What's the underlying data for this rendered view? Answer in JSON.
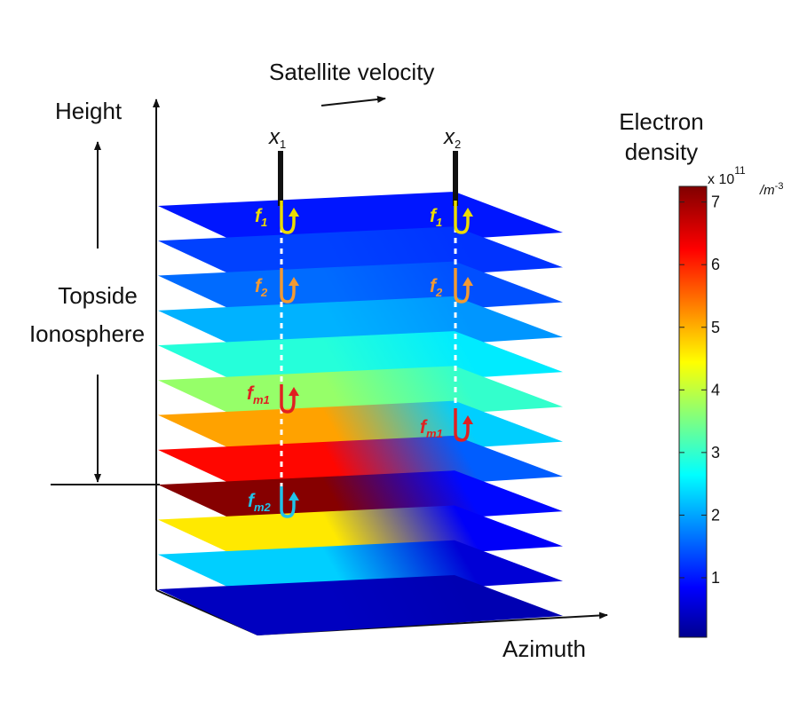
{
  "labels": {
    "satellite_velocity": "Satellite velocity",
    "height": "Height",
    "topside_line1": "Topside",
    "topside_line2": "Ionosphere",
    "azimuth": "Azimuth"
  },
  "colorbar": {
    "title_line1": "Electron",
    "title_line2": "density",
    "scale_base": "x 10",
    "scale_exp": "11",
    "unit_base": "/m",
    "unit_exp": "-3",
    "ticks": [
      "1",
      "2",
      "3",
      "4",
      "5",
      "6",
      "7"
    ],
    "min": 0.05,
    "max": 7.25
  },
  "satellites": [
    {
      "symbol": "x",
      "sub": "1"
    },
    {
      "symbol": "x",
      "sub": "2"
    }
  ],
  "freq_labels": {
    "x1": [
      {
        "sym": "f",
        "sub": "1",
        "color": "#ecdc00"
      },
      {
        "sym": "f",
        "sub": "2",
        "color": "#f39a32"
      },
      {
        "sym": "f",
        "sub": "m1",
        "color": "#e02020"
      },
      {
        "sym": "f",
        "sub": "m2",
        "color": "#21c3e8"
      }
    ],
    "x2": [
      {
        "sym": "f",
        "sub": "1",
        "color": "#ecdc00"
      },
      {
        "sym": "f",
        "sub": "2",
        "color": "#f39a32"
      },
      {
        "sym": "f",
        "sub": "m1",
        "color": "#e02020"
      }
    ]
  },
  "layers": [
    {
      "level": 1,
      "back": 1.0,
      "front": 1.0
    },
    {
      "level": 2,
      "back": 1.2,
      "front": 1.3
    },
    {
      "level": 3,
      "back": 1.4,
      "front": 1.6
    },
    {
      "level": 4,
      "back": 1.9,
      "front": 2.1
    },
    {
      "level": 5,
      "back": 2.5,
      "front": 2.9
    },
    {
      "level": 6,
      "back": 3.0,
      "front": 3.7
    },
    {
      "level": 7,
      "back": 2.3,
      "front": 5.1
    },
    {
      "level": 8,
      "back": 1.5,
      "front": 6.2
    },
    {
      "level": 9,
      "back": 0.9,
      "front": 7.2
    },
    {
      "level": 10,
      "back": 0.8,
      "front": 4.6
    },
    {
      "level": 11,
      "back": 0.55,
      "front": 2.3
    },
    {
      "level": 12,
      "back": 0.3,
      "front": 0.4
    }
  ]
}
